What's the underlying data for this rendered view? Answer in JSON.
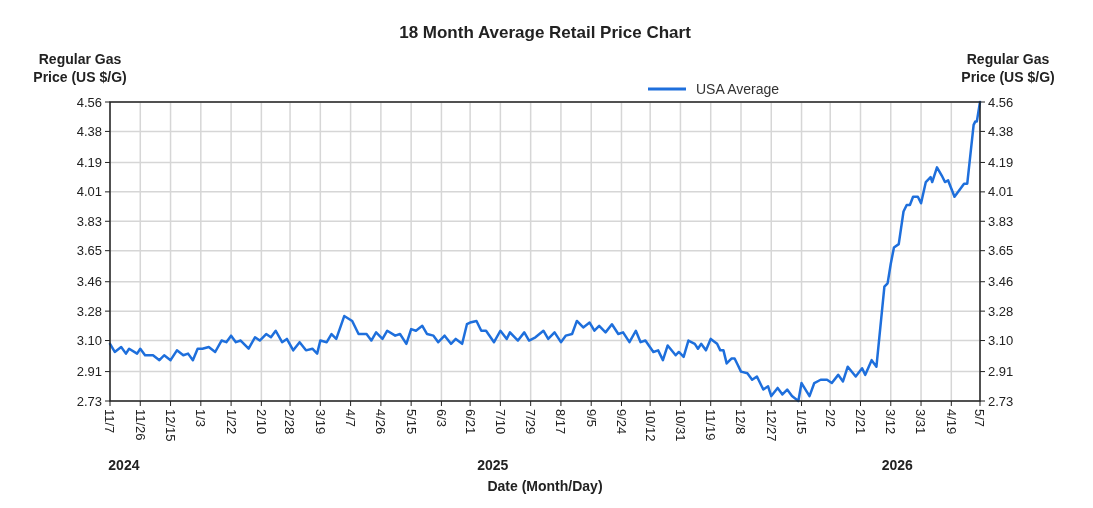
{
  "chart_data": {
    "type": "line",
    "title": "18 Month Average Retail Price Chart",
    "xlabel": "Date (Month/Day)",
    "ylabel": "Regular Gas Price (US $/G)",
    "y2label": "Regular Gas Price (US $/G)",
    "x": [
      "2024-11-07",
      "2024-11-10",
      "2024-11-14",
      "2024-11-17",
      "2024-11-19",
      "2024-11-24",
      "2024-11-26",
      "2024-11-29",
      "2024-12-04",
      "2024-12-08",
      "2024-12-11",
      "2024-12-15",
      "2024-12-19",
      "2024-12-23",
      "2024-12-26",
      "2024-12-29",
      "2025-01-01",
      "2025-01-04",
      "2025-01-08",
      "2025-01-12",
      "2025-01-16",
      "2025-01-19",
      "2025-01-22",
      "2025-01-25",
      "2025-01-28",
      "2025-02-02",
      "2025-02-06",
      "2025-02-09",
      "2025-02-13",
      "2025-02-16",
      "2025-02-19",
      "2025-02-23",
      "2025-02-26",
      "2025-03-02",
      "2025-03-06",
      "2025-03-10",
      "2025-03-14",
      "2025-03-17",
      "2025-03-19",
      "2025-03-23",
      "2025-03-26",
      "2025-03-29",
      "2025-04-03",
      "2025-04-08",
      "2025-04-12",
      "2025-04-17",
      "2025-04-20",
      "2025-04-23",
      "2025-04-27",
      "2025-04-30",
      "2025-05-05",
      "2025-05-08",
      "2025-05-12",
      "2025-05-15",
      "2025-05-18",
      "2025-05-22",
      "2025-05-25",
      "2025-05-29",
      "2025-06-01",
      "2025-06-05",
      "2025-06-09",
      "2025-06-12",
      "2025-06-16",
      "2025-06-19",
      "2025-06-21",
      "2025-06-25",
      "2025-06-28",
      "2025-07-01",
      "2025-07-06",
      "2025-07-10",
      "2025-07-14",
      "2025-07-16",
      "2025-07-21",
      "2025-07-25",
      "2025-07-28",
      "2025-08-01",
      "2025-08-06",
      "2025-08-09",
      "2025-08-13",
      "2025-08-17",
      "2025-08-20",
      "2025-08-24",
      "2025-08-27",
      "2025-08-31",
      "2025-09-04",
      "2025-09-07",
      "2025-09-10",
      "2025-09-14",
      "2025-09-18",
      "2025-09-22",
      "2025-09-25",
      "2025-09-29",
      "2025-10-03",
      "2025-10-06",
      "2025-10-09",
      "2025-10-14",
      "2025-10-17",
      "2025-10-20",
      "2025-10-23",
      "2025-10-28",
      "2025-10-30",
      "2025-11-02",
      "2025-11-05",
      "2025-11-09",
      "2025-11-11",
      "2025-11-13",
      "2025-11-16",
      "2025-11-19",
      "2025-11-23",
      "2025-11-25",
      "2025-11-27",
      "2025-11-29",
      "2025-12-02",
      "2025-12-04",
      "2025-12-06",
      "2025-12-08",
      "2025-12-12",
      "2025-12-15",
      "2025-12-18",
      "2025-12-22",
      "2025-12-25",
      "2025-12-27",
      "2025-12-31",
      "2026-01-03",
      "2026-01-06",
      "2026-01-09",
      "2026-01-13",
      "2026-01-15",
      "2026-01-20",
      "2026-01-23",
      "2026-01-27",
      "2026-01-31",
      "2026-02-03",
      "2026-02-07",
      "2026-02-10",
      "2026-02-13",
      "2026-02-18",
      "2026-02-22",
      "2026-02-24",
      "2026-02-28",
      "2026-03-03",
      "2026-03-08",
      "2026-03-10",
      "2026-03-12",
      "2026-03-14",
      "2026-03-17",
      "2026-03-20",
      "2026-03-22",
      "2026-03-24",
      "2026-03-26",
      "2026-03-29",
      "2026-03-31",
      "2026-04-03",
      "2026-04-06",
      "2026-04-07",
      "2026-04-10",
      "2026-04-13",
      "2026-04-15",
      "2026-04-17",
      "2026-04-21",
      "2026-04-24",
      "2026-04-27",
      "2026-04-29",
      "2026-05-03",
      "2026-05-04",
      "2026-05-05",
      "2026-05-07"
    ],
    "series": [
      {
        "name": "USA Average",
        "color": "#1e6fdc",
        "values": [
          3.08,
          3.03,
          3.06,
          3.02,
          3.05,
          3.02,
          3.05,
          3.01,
          3.01,
          2.98,
          3.01,
          2.98,
          3.04,
          3.01,
          3.02,
          2.98,
          3.05,
          3.05,
          3.06,
          3.03,
          3.1,
          3.09,
          3.13,
          3.09,
          3.1,
          3.05,
          3.12,
          3.1,
          3.14,
          3.12,
          3.16,
          3.09,
          3.11,
          3.04,
          3.09,
          3.04,
          3.05,
          3.02,
          3.1,
          3.09,
          3.14,
          3.11,
          3.25,
          3.22,
          3.14,
          3.14,
          3.1,
          3.15,
          3.11,
          3.16,
          3.13,
          3.14,
          3.08,
          3.17,
          3.16,
          3.19,
          3.14,
          3.13,
          3.09,
          3.13,
          3.08,
          3.11,
          3.08,
          3.2,
          3.21,
          3.22,
          3.16,
          3.16,
          3.09,
          3.16,
          3.11,
          3.15,
          3.1,
          3.15,
          3.1,
          3.12,
          3.16,
          3.11,
          3.15,
          3.09,
          3.13,
          3.14,
          3.22,
          3.18,
          3.21,
          3.16,
          3.19,
          3.15,
          3.2,
          3.14,
          3.15,
          3.09,
          3.16,
          3.09,
          3.1,
          3.03,
          3.04,
          2.98,
          3.07,
          3.01,
          3.03,
          3.0,
          3.1,
          3.08,
          3.05,
          3.08,
          3.04,
          3.11,
          3.08,
          3.04,
          3.04,
          2.96,
          2.99,
          2.99,
          2.95,
          2.91,
          2.9,
          2.86,
          2.88,
          2.8,
          2.82,
          2.76,
          2.81,
          2.77,
          2.8,
          2.76,
          2.73,
          2.84,
          2.76,
          2.84,
          2.86,
          2.86,
          2.84,
          2.89,
          2.85,
          2.94,
          2.88,
          2.93,
          2.89,
          2.98,
          2.94,
          3.43,
          3.45,
          3.57,
          3.67,
          3.69,
          3.89,
          3.93,
          3.93,
          3.98,
          3.98,
          3.94,
          4.07,
          4.1,
          4.07,
          4.16,
          4.11,
          4.07,
          4.08,
          3.98,
          4.02,
          4.06,
          4.06,
          4.42,
          4.44,
          4.44,
          4.56
        ]
      }
    ],
    "xlim": [
      "2024-11-07",
      "2026-05-07"
    ],
    "xticks": [
      {
        "value": "2024-11-07",
        "label": "11/7"
      },
      {
        "value": "2024-11-26",
        "label": "11/26"
      },
      {
        "value": "2024-12-15",
        "label": "12/15"
      },
      {
        "value": "2025-01-03",
        "label": "1/3"
      },
      {
        "value": "2025-01-22",
        "label": "1/22"
      },
      {
        "value": "2025-02-10",
        "label": "2/10"
      },
      {
        "value": "2025-02-28",
        "label": "2/28"
      },
      {
        "value": "2025-03-19",
        "label": "3/19"
      },
      {
        "value": "2025-04-07",
        "label": "4/7"
      },
      {
        "value": "2025-04-26",
        "label": "4/26"
      },
      {
        "value": "2025-05-15",
        "label": "5/15"
      },
      {
        "value": "2025-06-03",
        "label": "6/3"
      },
      {
        "value": "2025-06-21",
        "label": "6/21"
      },
      {
        "value": "2025-07-10",
        "label": "7/10"
      },
      {
        "value": "2025-07-29",
        "label": "7/29"
      },
      {
        "value": "2025-08-17",
        "label": "8/17"
      },
      {
        "value": "2025-09-05",
        "label": "9/5"
      },
      {
        "value": "2025-09-24",
        "label": "9/24"
      },
      {
        "value": "2025-10-12",
        "label": "10/12"
      },
      {
        "value": "2025-10-31",
        "label": "10/31"
      },
      {
        "value": "2025-11-19",
        "label": "11/19"
      },
      {
        "value": "2025-12-08",
        "label": "12/8"
      },
      {
        "value": "2025-12-27",
        "label": "12/27"
      },
      {
        "value": "2026-01-15",
        "label": "1/15"
      },
      {
        "value": "2026-02-02",
        "label": "2/2"
      },
      {
        "value": "2026-02-21",
        "label": "2/21"
      },
      {
        "value": "2026-03-12",
        "label": "3/12"
      },
      {
        "value": "2026-03-31",
        "label": "3/31"
      },
      {
        "value": "2026-04-19",
        "label": "4/19"
      },
      {
        "value": "2026-05-07",
        "label": "5/7"
      }
    ],
    "ylim": [
      2.73,
      4.56
    ],
    "yticks": [
      2.73,
      2.91,
      {
        "value": 3.1,
        "label": "3.10"
      },
      3.28,
      3.46,
      3.65,
      3.83,
      4.01,
      4.19,
      4.38,
      4.56
    ],
    "y2lim": [
      2.73,
      4.56
    ],
    "y2ticks": [
      2.73,
      2.91,
      {
        "value": 3.1,
        "label": "3.10"
      },
      3.28,
      3.46,
      3.65,
      3.83,
      4.01,
      4.19,
      4.38,
      4.56
    ],
    "grid": true,
    "legend": "top",
    "annotations": [
      "2024",
      "2025",
      "2026"
    ]
  }
}
